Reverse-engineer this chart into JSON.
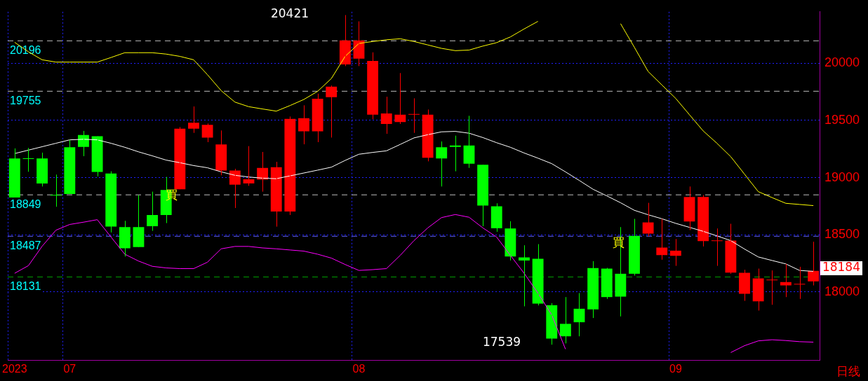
{
  "chart_data": {
    "type": "candlestick",
    "categories": [
      "2023",
      null,
      null,
      null,
      "07",
      null,
      null,
      null,
      null,
      null,
      null,
      null,
      null,
      null,
      null,
      null,
      null,
      null,
      null,
      null,
      null,
      null,
      null,
      null,
      null,
      "08",
      null,
      null,
      null,
      null,
      null,
      null,
      null,
      null,
      null,
      null,
      null,
      null,
      null,
      null,
      null,
      null,
      null,
      null,
      null,
      null,
      null,
      null,
      "09",
      null,
      null,
      null,
      null,
      null,
      null,
      null,
      null,
      null,
      null
    ],
    "ohlc": [
      [
        19167,
        19255,
        18826,
        18826
      ],
      [
        19163,
        19259,
        19051,
        19163
      ],
      [
        19167,
        19218,
        18922,
        18949
      ],
      [
        18843,
        19026,
        18745,
        18843
      ],
      [
        19265,
        19330,
        18857,
        18857
      ],
      [
        19373,
        19408,
        19187,
        19269
      ],
      [
        19361,
        19361,
        19010,
        19049
      ],
      [
        19036,
        19055,
        18520,
        18571
      ],
      [
        18567,
        18622,
        18310,
        18381
      ],
      [
        18567,
        18847,
        18392,
        18392
      ],
      [
        18673,
        18877,
        18534,
        18575
      ],
      [
        18891,
        19006,
        18602,
        18673
      ],
      [
        18898,
        19442,
        18898,
        19428
      ],
      [
        19428,
        19622,
        19391,
        19479
      ],
      [
        19350,
        19473,
        19310,
        19461
      ],
      [
        19061,
        19412,
        19020,
        19289
      ],
      [
        18938,
        19077,
        18734,
        19061
      ],
      [
        18949,
        19275,
        18928,
        18985
      ],
      [
        18983,
        19224,
        18877,
        19085
      ],
      [
        18704,
        19138,
        18571,
        19091
      ],
      [
        18704,
        19534,
        18673,
        19514
      ],
      [
        19404,
        19632,
        19291,
        19520
      ],
      [
        19404,
        19734,
        19310,
        19689
      ],
      [
        19703,
        19805,
        19350,
        19795
      ],
      [
        19989,
        20421,
        19975,
        20199
      ],
      [
        20040,
        20366,
        19975,
        20199
      ],
      [
        19550,
        20095,
        19510,
        20020
      ],
      [
        19469,
        19707,
        19383,
        19561
      ],
      [
        19485,
        19914,
        19469,
        19550
      ],
      [
        19550,
        19693,
        19391,
        19550
      ],
      [
        19173,
        19595,
        19142,
        19550
      ],
      [
        19265,
        19316,
        18922,
        19167
      ],
      [
        19281,
        19367,
        19055,
        19269
      ],
      [
        19281,
        19540,
        19085,
        19122
      ],
      [
        19112,
        19112,
        18575,
        18755
      ],
      [
        18749,
        18775,
        18526,
        18557
      ],
      [
        18555,
        18618,
        18275,
        18310
      ],
      [
        18302,
        18408,
        17874,
        18275
      ],
      [
        18290,
        18418,
        17882,
        17898
      ],
      [
        17884,
        17902,
        17539,
        17592
      ],
      [
        17721,
        17955,
        17550,
        17612
      ],
      [
        17853,
        17990,
        17612,
        17735
      ],
      [
        18208,
        18269,
        17772,
        17847
      ],
      [
        18204,
        18210,
        17939,
        17955
      ],
      [
        18159,
        18567,
        17786,
        17959
      ],
      [
        18490,
        18639,
        18143,
        18159
      ],
      [
        18510,
        18779,
        18486,
        18608
      ],
      [
        18322,
        18639,
        18282,
        18388
      ],
      [
        18316,
        18463,
        18228,
        18361
      ],
      [
        18616,
        18922,
        18541,
        18830
      ],
      [
        18445,
        18847,
        18398,
        18830
      ],
      [
        18445,
        18555,
        18228,
        18445
      ],
      [
        18169,
        18596,
        18159,
        18449
      ],
      [
        17984,
        18194,
        17922,
        18167
      ],
      [
        17918,
        18204,
        17837,
        18118
      ],
      [
        18102,
        18188,
        17888,
        18102
      ],
      [
        18057,
        18245,
        17955,
        18086
      ],
      [
        18065,
        18220,
        17939,
        18065
      ],
      [
        18092,
        18439,
        18057,
        18184
      ]
    ],
    "colors": [
      "#00ff00",
      "#00ff00",
      "#00ff00",
      "#00ff00",
      "#00ff00",
      "#00ff00",
      "#00ff00",
      "#00ff00",
      "#00ff00",
      "#00ff00",
      "#00ff00",
      "#00ff00",
      "#ff0000",
      "#ff0000",
      "#ff0000",
      "#ff0000",
      "#ff0000",
      "#ff0000",
      "#ff0000",
      "#ff0000",
      "#ff0000",
      "#ff0000",
      "#ff0000",
      "#ff0000",
      "#ff0000",
      "#ff0000",
      "#ff0000",
      "#ff0000",
      "#ff0000",
      "#ff0000",
      "#ff0000",
      "#00ff00",
      "#00ff00",
      "#00ff00",
      "#00ff00",
      "#00ff00",
      "#00ff00",
      "#00ff00",
      "#00ff00",
      "#00ff00",
      "#00ff00",
      "#00ff00",
      "#00ff00",
      "#00ff00",
      "#00ff00",
      "#00ff00",
      "#ff0000",
      "#ff0000",
      "#ff0000",
      "#ff0000",
      "#ff0000",
      "#ff0000",
      "#ff0000",
      "#ff0000",
      "#ff0000",
      "#ff0000",
      "#ff0000",
      "#ff0000",
      "#ff0000"
    ],
    "series": [
      {
        "type": "line",
        "color": "#ffffff",
        "values": [
          19210,
          19240,
          19270,
          19300,
          19330,
          19335,
          19330,
          19300,
          19265,
          19225,
          19190,
          19153,
          19130,
          19105,
          19086,
          19050,
          19020,
          19005,
          18995,
          18990,
          19015,
          19040,
          19065,
          19091,
          19150,
          19204,
          19220,
          19234,
          19290,
          19347,
          19375,
          19400,
          19404,
          19388,
          19350,
          19305,
          19265,
          19215,
          19170,
          19122,
          19050,
          18975,
          18898,
          18840,
          18780,
          18714,
          18675,
          18640,
          18600,
          18565,
          18530,
          18490,
          18449,
          18375,
          18306,
          18275,
          18245,
          18188,
          18180
        ]
      },
      {
        "type": "line",
        "color": "#ffff00",
        "values": [
          20183,
          20100,
          20030,
          20010,
          20010,
          20010,
          20010,
          20050,
          20092,
          20092,
          20092,
          20080,
          20060,
          20030,
          19900,
          19760,
          19660,
          19620,
          19600,
          19581,
          19630,
          19683,
          19754,
          19866,
          20060,
          20173,
          20190,
          20205,
          20214,
          20190,
          20160,
          20130,
          20110,
          20115,
          20150,
          20180,
          20230,
          20300,
          20366,
          null,
          null,
          null,
          null,
          null,
          20346,
          20140,
          19928,
          19810,
          19693,
          19550,
          19408,
          19300,
          19183,
          19030,
          18877,
          18825,
          18775,
          18765,
          18755
        ]
      },
      {
        "type": "line",
        "color": "#ff00ff",
        "values": [
          18163,
          18230,
          18400,
          18540,
          18590,
          18610,
          18632,
          18480,
          18330,
          18270,
          18224,
          18210,
          18204,
          18204,
          18260,
          18377,
          18398,
          18398,
          18385,
          18377,
          18367,
          18357,
          18330,
          18296,
          18240,
          18188,
          18195,
          18204,
          18320,
          18449,
          18560,
          18650,
          18677,
          18653,
          18560,
          18480,
          18320,
          18163,
          17990,
          17800,
          17500,
          null,
          null,
          null,
          null,
          null,
          null,
          null,
          null,
          null,
          null,
          null,
          17470,
          17530,
          17572,
          17582,
          17575,
          17565,
          17561
        ]
      }
    ],
    "ylim": [
      17400,
      20450
    ],
    "yticks": [
      18000,
      18500,
      19000,
      19500,
      20000
    ],
    "grid": true,
    "ref_lines": [
      {
        "axis": "y",
        "value": 20196,
        "label": "20196",
        "color": "#c0c0c0",
        "line_style": "dashed"
      },
      {
        "axis": "y",
        "value": 19755,
        "label": "19755",
        "color": "#c0c0c0",
        "line_style": "dashed"
      },
      {
        "axis": "y",
        "value": 18849,
        "label": "18849",
        "color": "#c0c0c0",
        "line_style": "dashed"
      },
      {
        "axis": "y",
        "value": 18487,
        "label": "18487",
        "color": "#6060ff",
        "line_style": "dashed"
      },
      {
        "axis": "y",
        "value": 18131,
        "label": "18131",
        "color": "#00a000",
        "line_style": "dashed"
      }
    ],
    "annotations": [
      "20421",
      "17539",
      "18184",
      "買",
      "買",
      "日线"
    ]
  }
}
